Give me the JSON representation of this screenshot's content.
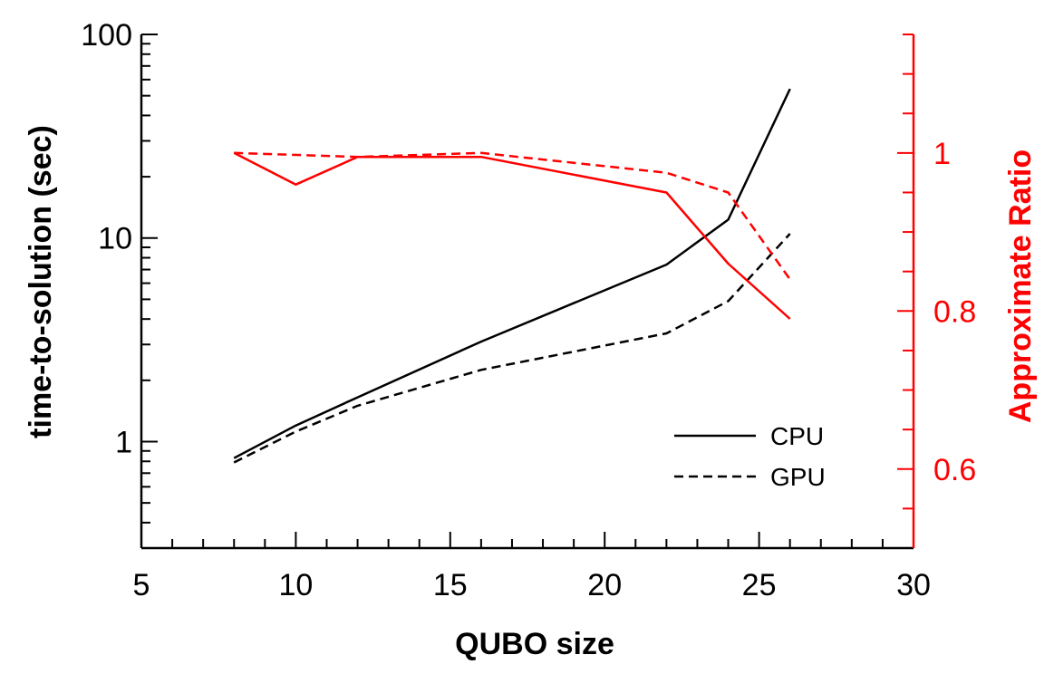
{
  "chart_data": {
    "type": "line",
    "xlabel": "QUBO size",
    "ylabel_left": "time-to-solution (sec)",
    "ylabel_right": "Approximate Ratio",
    "xlim": [
      5,
      30
    ],
    "ylim_left": [
      0.3,
      100
    ],
    "ylim_left_scale": "log",
    "ylim_right": [
      0.5,
      1.15
    ],
    "xticks": [
      "5",
      "10",
      "15",
      "20",
      "25",
      "30"
    ],
    "yticks_left": [
      "1",
      "10",
      "100"
    ],
    "yticks_right": [
      "0.6",
      "0.8",
      "1"
    ],
    "legend_position": "lower-right",
    "axis_colors": {
      "left": "#000000",
      "right": "#ff0000"
    },
    "series": [
      {
        "name": "CPU",
        "axis": "left",
        "color": "#000000",
        "dash": "solid",
        "x": [
          8,
          10,
          12,
          16,
          22,
          24,
          26
        ],
        "y": [
          0.83,
          1.2,
          1.65,
          3.1,
          7.4,
          12.3,
          54
        ]
      },
      {
        "name": "GPU",
        "axis": "left",
        "color": "#000000",
        "dash": "dashed",
        "x": [
          8,
          10,
          12,
          16,
          22,
          24,
          26
        ],
        "y": [
          0.79,
          1.12,
          1.5,
          2.25,
          3.4,
          4.9,
          10.5
        ]
      },
      {
        "axis": "right",
        "color": "#ff0000",
        "dash": "solid",
        "x": [
          8,
          10,
          12,
          16,
          22,
          24,
          26
        ],
        "y": [
          1.0,
          0.96,
          0.995,
          0.995,
          0.95,
          0.86,
          0.79
        ]
      },
      {
        "axis": "right",
        "color": "#ff0000",
        "dash": "dashed",
        "x": [
          8,
          12,
          16,
          22,
          24,
          26
        ],
        "y": [
          1.0,
          0.995,
          1.0,
          0.975,
          0.95,
          0.84
        ]
      }
    ]
  }
}
